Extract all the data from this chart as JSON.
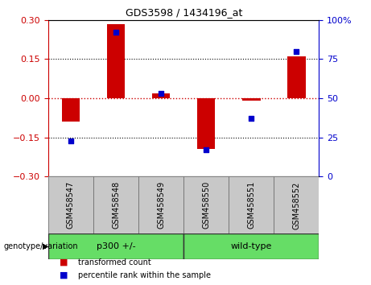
{
  "title": "GDS3598 / 1434196_at",
  "samples": [
    "GSM458547",
    "GSM458548",
    "GSM458549",
    "GSM458550",
    "GSM458551",
    "GSM458552"
  ],
  "bar_values": [
    -0.09,
    0.285,
    0.02,
    -0.195,
    -0.01,
    0.16
  ],
  "percentile_values": [
    23,
    92,
    53,
    17,
    37,
    80
  ],
  "bar_color": "#cc0000",
  "dot_color": "#0000cc",
  "ylim_left": [
    -0.3,
    0.3
  ],
  "ylim_right": [
    0,
    100
  ],
  "yticks_left": [
    -0.3,
    -0.15,
    0,
    0.15,
    0.3
  ],
  "yticks_right": [
    0,
    25,
    50,
    75,
    100
  ],
  "hline0_color": "#cc0000",
  "hline_color": "#000000",
  "group1_label": "p300 +/-",
  "group2_label": "wild-type",
  "group_color": "#66dd66",
  "label_bg_color": "#c8c8c8",
  "legend_labels": [
    "transformed count",
    "percentile rank within the sample"
  ],
  "legend_colors": [
    "#cc0000",
    "#0000cc"
  ],
  "genotype_label": "genotype/variation",
  "bar_width": 0.4
}
